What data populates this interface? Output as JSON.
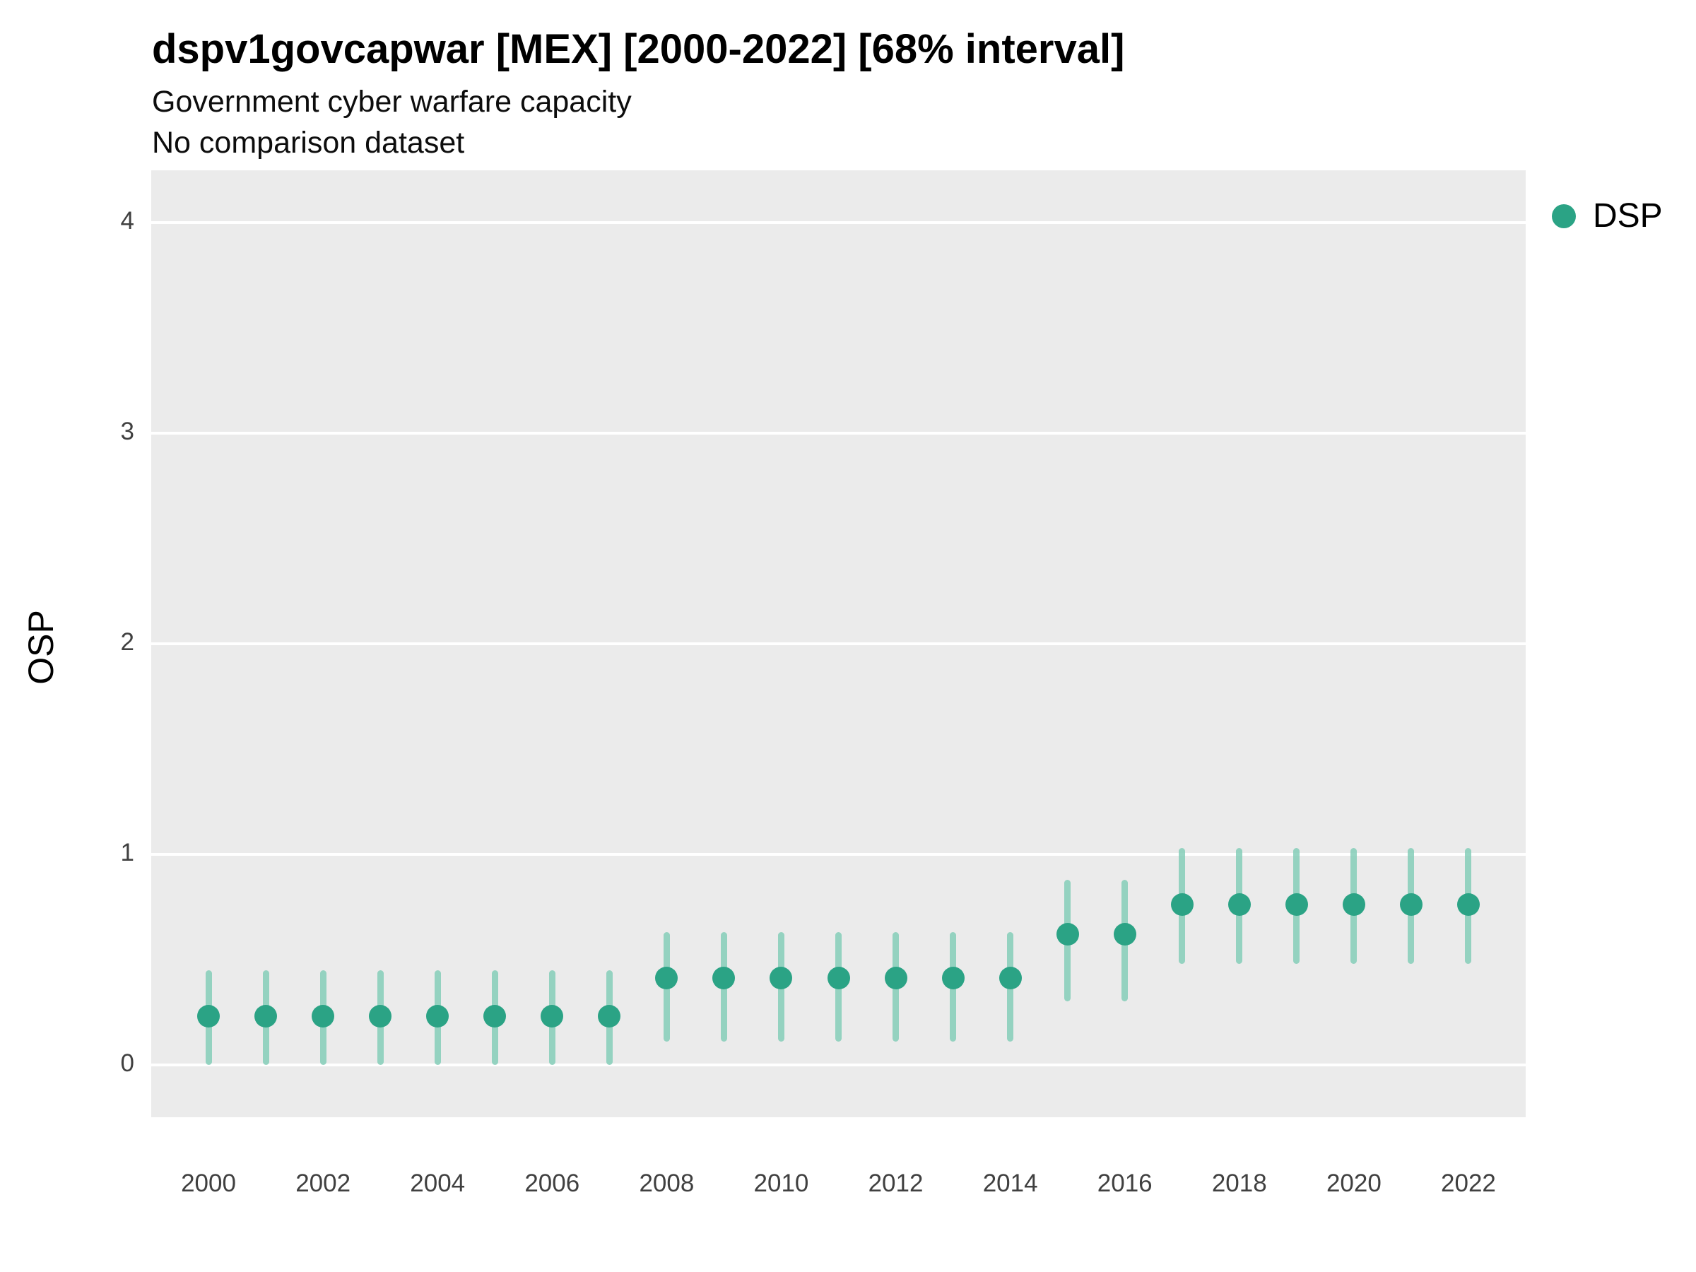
{
  "title": "dspv1govcapwar [MEX] [2000-2022] [68% interval]",
  "subtitle": "Government cyber warfare capacity",
  "note": "No comparison dataset",
  "legend": {
    "items": [
      {
        "label": "DSP",
        "color": "#2ba385"
      }
    ]
  },
  "colors": {
    "point": "#2ba385",
    "interval": "#85ceb9",
    "panel_bg": "#ebebeb",
    "grid": "#ffffff",
    "tick_text": "#404040"
  },
  "chart_data": {
    "type": "scatter",
    "title": "dspv1govcapwar [MEX] [2000-2022] [68% interval]",
    "subtitle": "Government cyber warfare capacity",
    "note": "No comparison dataset",
    "interval": "68%",
    "xlabel": "",
    "ylabel": "OSP",
    "x": [
      2000,
      2001,
      2002,
      2003,
      2004,
      2005,
      2006,
      2007,
      2008,
      2009,
      2010,
      2011,
      2012,
      2013,
      2014,
      2015,
      2016,
      2017,
      2018,
      2019,
      2020,
      2021,
      2022
    ],
    "series": [
      {
        "name": "DSP",
        "values": [
          0.23,
          0.23,
          0.23,
          0.23,
          0.23,
          0.23,
          0.23,
          0.23,
          0.41,
          0.41,
          0.41,
          0.41,
          0.41,
          0.41,
          0.41,
          0.62,
          0.62,
          0.76,
          0.76,
          0.76,
          0.76,
          0.76,
          0.76
        ],
        "lower": [
          0.0,
          0.0,
          0.0,
          0.0,
          0.0,
          0.0,
          0.0,
          0.0,
          0.11,
          0.11,
          0.11,
          0.11,
          0.11,
          0.11,
          0.11,
          0.3,
          0.3,
          0.48,
          0.48,
          0.48,
          0.48,
          0.48,
          0.48
        ],
        "upper": [
          0.45,
          0.45,
          0.45,
          0.45,
          0.45,
          0.45,
          0.45,
          0.45,
          0.63,
          0.63,
          0.63,
          0.63,
          0.63,
          0.63,
          0.63,
          0.88,
          0.88,
          1.03,
          1.03,
          1.03,
          1.03,
          1.03,
          1.03
        ]
      }
    ],
    "xticks": [
      2000,
      2002,
      2004,
      2006,
      2008,
      2010,
      2012,
      2014,
      2016,
      2018,
      2020,
      2022
    ],
    "yticks": [
      0,
      1,
      2,
      3,
      4
    ],
    "xlim": [
      1999,
      2023
    ],
    "ylim": [
      -0.25,
      4.25
    ],
    "grid": true,
    "legend_position": "right"
  }
}
